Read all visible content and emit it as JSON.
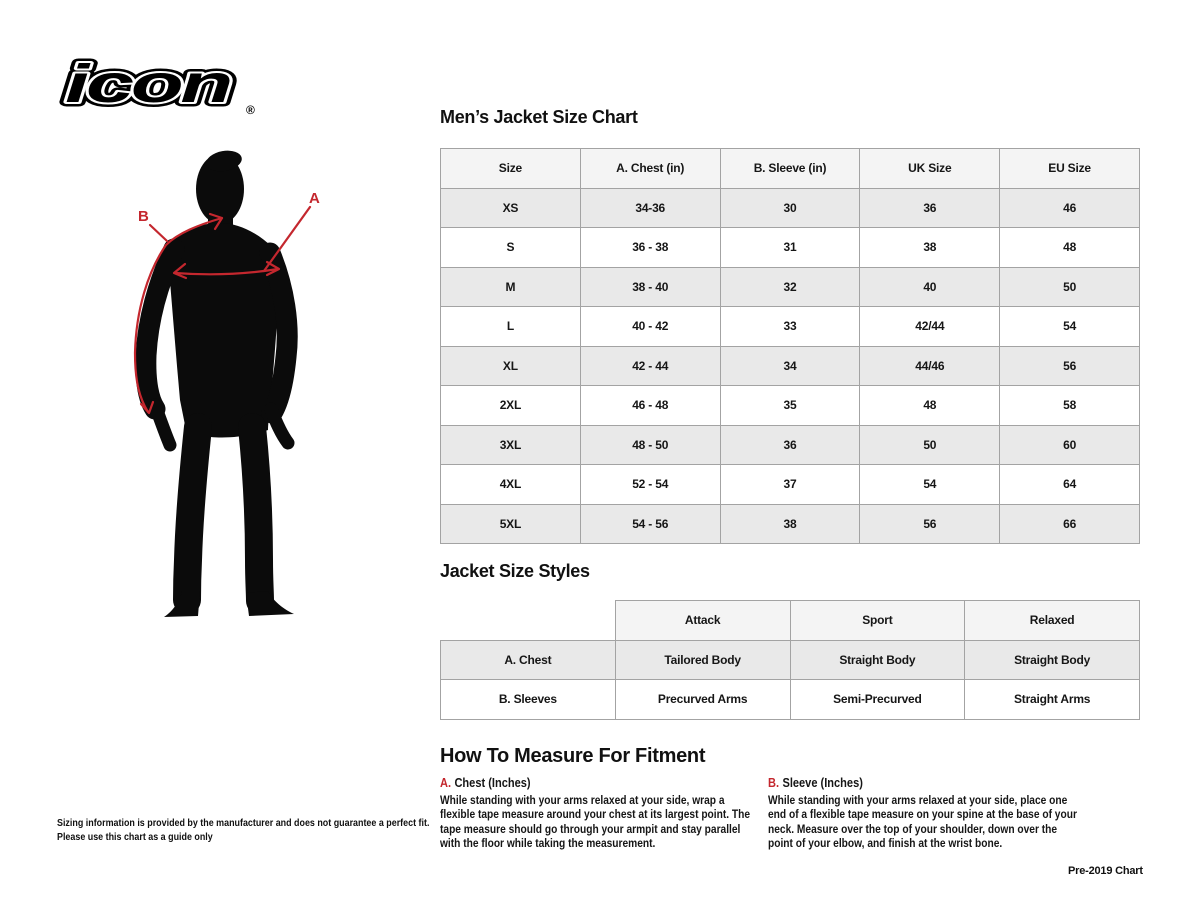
{
  "brand": {
    "logo_text": "icon",
    "registered_mark": "®"
  },
  "diagram": {
    "label_a": "A",
    "label_b": "B"
  },
  "size_chart": {
    "title": "Men’s Jacket Size Chart",
    "columns": [
      "Size",
      "A. Chest (in)",
      "B. Sleeve (in)",
      "UK Size",
      "EU Size"
    ],
    "rows": [
      [
        "XS",
        "34-36",
        "30",
        "36",
        "46"
      ],
      [
        "S",
        "36 - 38",
        "31",
        "38",
        "48"
      ],
      [
        "M",
        "38 - 40",
        "32",
        "40",
        "50"
      ],
      [
        "L",
        "40 - 42",
        "33",
        "42/44",
        "54"
      ],
      [
        "XL",
        "42 - 44",
        "34",
        "44/46",
        "56"
      ],
      [
        "2XL",
        "46 - 48",
        "35",
        "48",
        "58"
      ],
      [
        "3XL",
        "48 - 50",
        "36",
        "50",
        "60"
      ],
      [
        "4XL",
        "52 - 54",
        "37",
        "54",
        "64"
      ],
      [
        "5XL",
        "54 - 56",
        "38",
        "56",
        "66"
      ]
    ]
  },
  "styles_chart": {
    "title": "Jacket Size Styles",
    "columns": [
      "",
      "Attack",
      "Sport",
      "Relaxed"
    ],
    "rows": [
      [
        "A. Chest",
        "Tailored Body",
        "Straight Body",
        "Straight Body"
      ],
      [
        "B. Sleeves",
        "Precurved Arms",
        "Semi-Precurved",
        "Straight Arms"
      ]
    ]
  },
  "how_to_measure": {
    "title": "How To Measure For Fitment",
    "chest": {
      "letter": "A.",
      "heading": "Chest (Inches)",
      "body": "While standing with your arms relaxed at your side, wrap a flexible tape measure around your chest at its largest point. The tape measure should go through your armpit and stay parallel with the floor while taking the measurement."
    },
    "sleeve": {
      "letter": "B.",
      "heading": "Sleeve (Inches)",
      "body": "While standing with your arms relaxed at your side, place one end of a flexible tape measure on your spine at the base of your neck. Measure over the top of your shoulder, down over the point of your elbow, and finish at the wrist bone."
    }
  },
  "footer": {
    "disclaimer_line1": "Sizing information is provided by the manufacturer and does not guarantee a perfect fit.",
    "disclaimer_line2": "Please use this chart as a guide only",
    "chart_version": "Pre-2019 Chart"
  },
  "colors": {
    "accent_red": "#c4272e",
    "silhouette_black": "#0b0b0b",
    "row_gray": "#e9e9e9",
    "header_gray": "#f4f4f4",
    "border_gray": "#a3a3a3"
  }
}
